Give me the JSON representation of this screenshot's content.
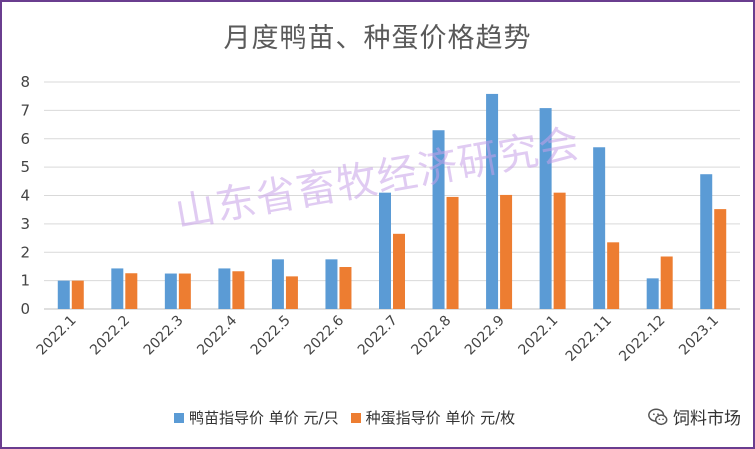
{
  "chart_data": {
    "type": "bar",
    "title": "月度鸭苗、种蛋价格趋势",
    "categories": [
      "2022.1",
      "2022.2",
      "2022.3",
      "2022.4",
      "2022.5",
      "2022.6",
      "2022.7",
      "2022.8",
      "2022.9",
      "2022.1",
      "2022.11",
      "2022.12",
      "2023.1"
    ],
    "series": [
      {
        "name": "鸭苗指导价 单价 元/只",
        "color": "#5b9bd5",
        "values": [
          1.0,
          1.43,
          1.25,
          1.43,
          1.75,
          1.75,
          4.1,
          6.3,
          7.58,
          7.08,
          5.7,
          1.08,
          4.75
        ]
      },
      {
        "name": "种蛋指导价 单价 元/枚",
        "color": "#ed7d31",
        "values": [
          1.0,
          1.26,
          1.25,
          1.33,
          1.15,
          1.48,
          2.65,
          3.95,
          4.02,
          4.1,
          2.35,
          1.85,
          3.52
        ]
      }
    ],
    "yticks": [
      "0",
      "1",
      "2",
      "3",
      "4",
      "5",
      "6",
      "7",
      "8"
    ],
    "ylim": [
      0,
      8
    ],
    "grid": true,
    "legend_position": "bottom"
  },
  "watermark": "山东省畜牧经济研究会",
  "brand": {
    "name": "饲料市场",
    "icon": "wechat-logo-icon"
  }
}
